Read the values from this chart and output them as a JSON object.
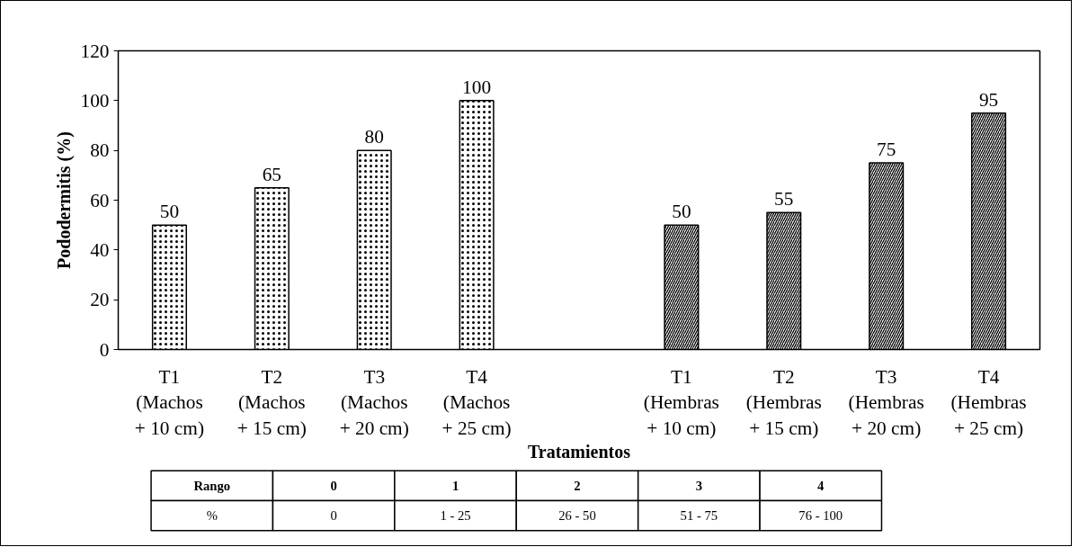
{
  "chart_data": {
    "type": "bar",
    "xlabel": "Tratamientos",
    "ylabel": "Pododermitis (%)",
    "categories": [
      "T1\n(Machos\n+ 10 cm)",
      "T2\n(Machos\n+ 15 cm)",
      "T3\n(Machos\n+ 20 cm)",
      "T4\n(Machos\n+ 25 cm)",
      null,
      "T1\n(Hembras\n+ 10 cm)",
      "T2\n(Hembras\n+ 15 cm)",
      "T3\n(Hembras\n+ 20 cm)",
      "T4\n(Hembras\n+ 25 cm)"
    ],
    "series": [
      {
        "color": "#ffffff",
        "values": [
          50,
          65,
          80,
          100,
          null,
          null,
          null,
          null,
          null
        ]
      },
      {
        "color": "#ffffff",
        "values": [
          null,
          null,
          null,
          null,
          null,
          50,
          55,
          75,
          95
        ]
      }
    ],
    "ylim": [
      0,
      120
    ],
    "yticks": [
      0,
      20,
      40,
      60,
      80,
      100,
      120
    ],
    "data_labels": true,
    "annotations": [
      "Rango",
      "0",
      "1",
      "2",
      "3",
      "4",
      "%",
      "0",
      "1 - 25",
      "26 - 50",
      "51 - 75",
      "76 - 100"
    ]
  }
}
